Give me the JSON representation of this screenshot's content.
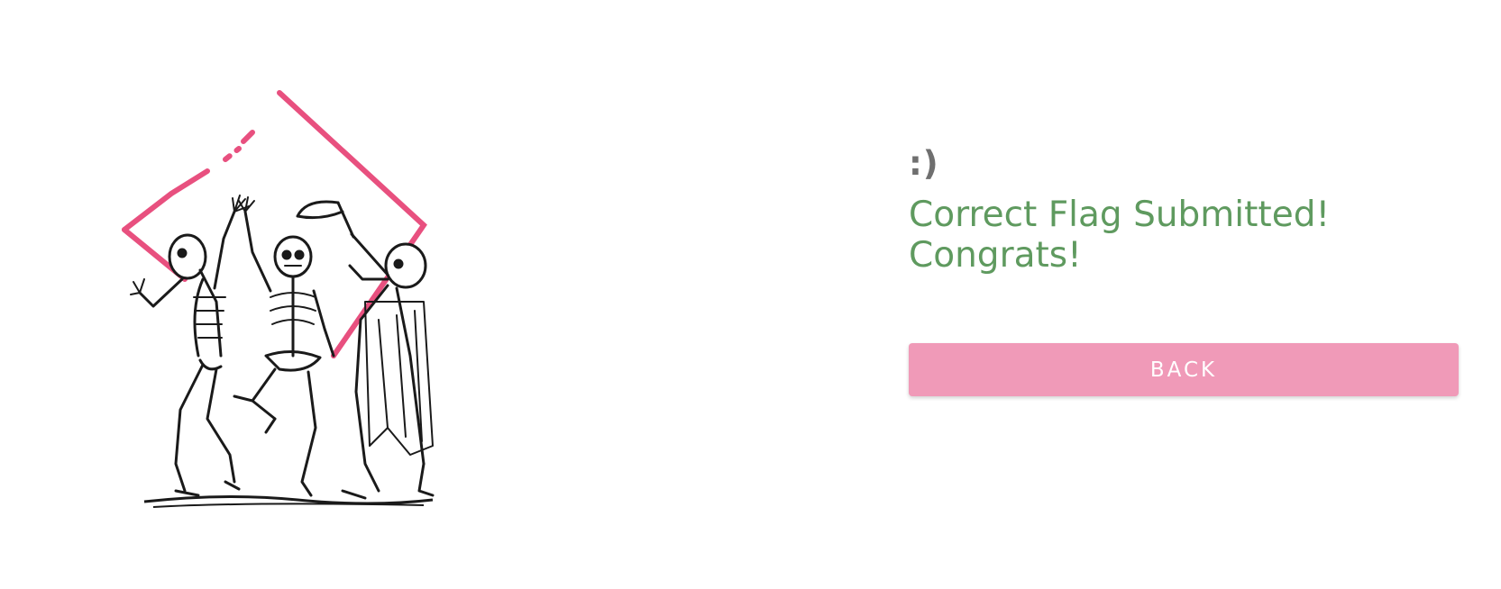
{
  "illustration": {
    "icon": "dancing-skeletons-illustration",
    "accent_color": "#e8507f",
    "ink_color": "#1a1a1a"
  },
  "result": {
    "emoticon": ":)",
    "message_line_1": "Correct Flag Submitted!",
    "message_line_2": "Congrats!",
    "message_color": "#5f9a5f"
  },
  "actions": {
    "back_label": "BACK",
    "back_color": "#f09ab8"
  }
}
